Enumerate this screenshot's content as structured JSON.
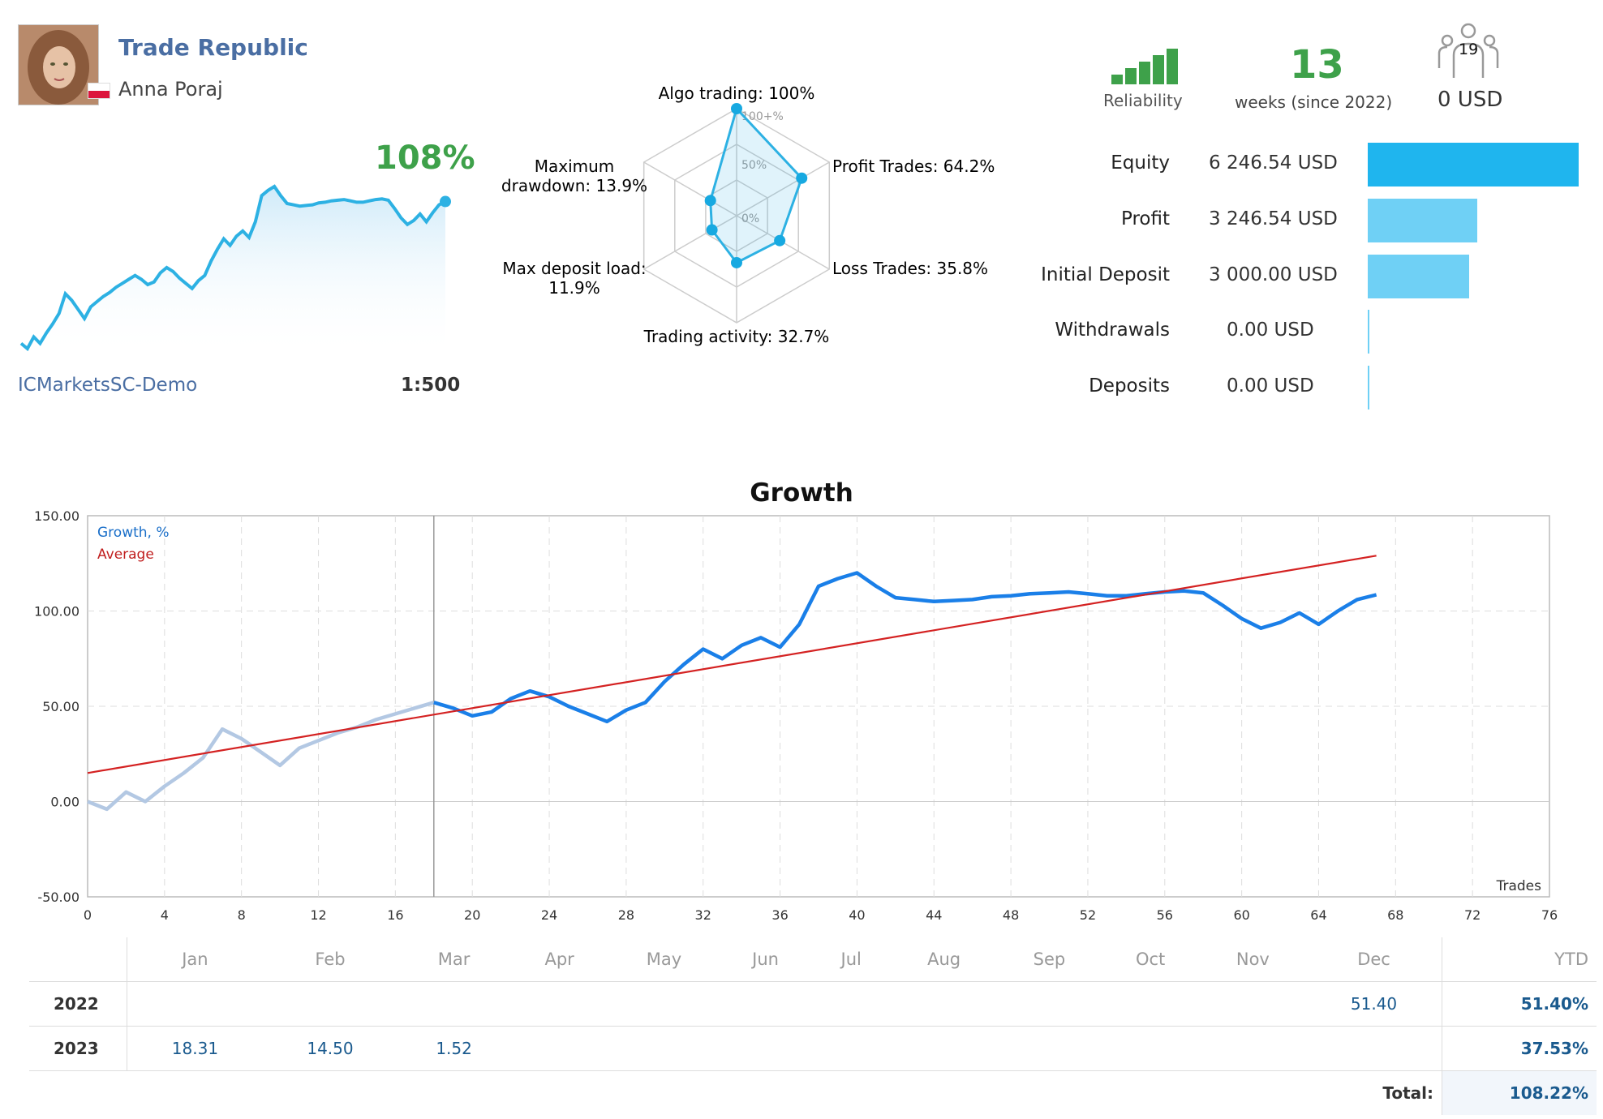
{
  "header": {
    "title": "Trade Republic",
    "author": "Anna Poraj"
  },
  "mini_chart": {
    "growth": "108%",
    "server": "ICMarketsSC-Demo",
    "leverage": "1:500",
    "accent": "#2db1e3"
  },
  "radar": {
    "labels": {
      "algo": "Algo trading: 100%",
      "profit": "Profit Trades: 64.2%",
      "loss": "Loss Trades: 35.8%",
      "activity": "Trading activity: 32.7%",
      "load_1": "Max deposit load:",
      "load_2": "11.9%",
      "dd_1": "Maximum",
      "dd_2": "drawdown: 13.9%"
    },
    "rings": {
      "r100": "100+%",
      "r50": "50%",
      "r0": "0%"
    },
    "values": {
      "algo": 100,
      "profit": 64.2,
      "loss": 35.8,
      "activity": 32.7,
      "load": 11.9,
      "drawdown": 13.9
    }
  },
  "summary": {
    "reliability_label": "Reliability",
    "reliability_bars": 5,
    "weeks": "13",
    "weeks_label": "weeks (since 2022)",
    "subscribers": "19",
    "subscription": "0 USD"
  },
  "stats": [
    {
      "label": "Equity",
      "value": "6 246.54 USD",
      "amount": 6246.54
    },
    {
      "label": "Profit",
      "value": "3 246.54 USD",
      "amount": 3246.54
    },
    {
      "label": "Initial Deposit",
      "value": "3 000.00 USD",
      "amount": 3000.0
    },
    {
      "label": "Withdrawals",
      "value": "0.00 USD",
      "amount": 0
    },
    {
      "label": "Deposits",
      "value": "0.00 USD",
      "amount": 0
    }
  ],
  "chart_data": {
    "type": "line",
    "title": "Growth",
    "xlabel": "Trades",
    "ylabel": "",
    "xlim": [
      0,
      76
    ],
    "ylim": [
      -50,
      150
    ],
    "xticks": [
      0,
      4,
      8,
      12,
      16,
      20,
      24,
      28,
      32,
      36,
      40,
      44,
      48,
      52,
      56,
      60,
      64,
      68,
      72,
      76
    ],
    "yticks": [
      "-50.00",
      "0.00",
      "50.00",
      "100.00",
      "150.00"
    ],
    "legend": [
      "Growth, %",
      "Average"
    ],
    "legend_position": "top-left",
    "grid": true,
    "divider_x": 18,
    "series": [
      {
        "name": "Growth, %",
        "color_early": "#b3c8e3",
        "color": "#1a7fe8",
        "split_index": 18,
        "x": [
          0,
          1,
          2,
          3,
          4,
          5,
          6,
          7,
          8,
          9,
          10,
          11,
          12,
          13,
          14,
          15,
          16,
          17,
          18,
          19,
          20,
          21,
          22,
          23,
          24,
          25,
          26,
          27,
          28,
          29,
          30,
          31,
          32,
          33,
          34,
          35,
          36,
          37,
          38,
          39,
          40,
          41,
          42,
          43,
          44,
          45,
          46,
          47,
          48,
          49,
          50,
          51,
          52,
          53,
          54,
          55,
          56,
          57,
          58,
          59,
          60,
          61,
          62,
          63,
          64,
          65,
          66,
          67
        ],
        "y": [
          0,
          -4,
          5,
          0,
          8,
          15,
          23,
          38,
          33,
          26,
          19,
          28,
          32,
          36,
          39,
          43,
          46,
          49,
          52,
          49,
          45,
          47,
          54,
          58,
          55,
          50,
          46,
          42,
          48,
          52,
          63,
          72,
          80,
          75,
          82,
          86,
          81,
          93,
          113,
          117,
          120,
          113,
          107,
          106,
          105,
          105.5,
          106,
          107.5,
          108,
          109,
          109.5,
          110,
          109,
          108,
          108,
          109,
          110,
          110.5,
          109.5,
          103,
          96,
          91,
          94,
          99,
          93,
          100,
          106,
          108.5
        ]
      },
      {
        "name": "Average",
        "color": "#d42222",
        "x": [
          0,
          67
        ],
        "y": [
          15,
          129
        ]
      }
    ]
  },
  "monthly": {
    "headers": [
      "Jan",
      "Feb",
      "Mar",
      "Apr",
      "May",
      "Jun",
      "Jul",
      "Aug",
      "Sep",
      "Oct",
      "Nov",
      "Dec",
      "YTD"
    ],
    "rows": [
      {
        "year": "2022",
        "cells": [
          "",
          "",
          "",
          "",
          "",
          "",
          "",
          "",
          "",
          "",
          "",
          "51.40"
        ],
        "ytd": "51.40%"
      },
      {
        "year": "2023",
        "cells": [
          "18.31",
          "14.50",
          "1.52",
          "",
          "",
          "",
          "",
          "",
          "",
          "",
          "",
          ""
        ],
        "ytd": "37.53%"
      }
    ],
    "total_label": "Total:",
    "total": "108.22%"
  }
}
